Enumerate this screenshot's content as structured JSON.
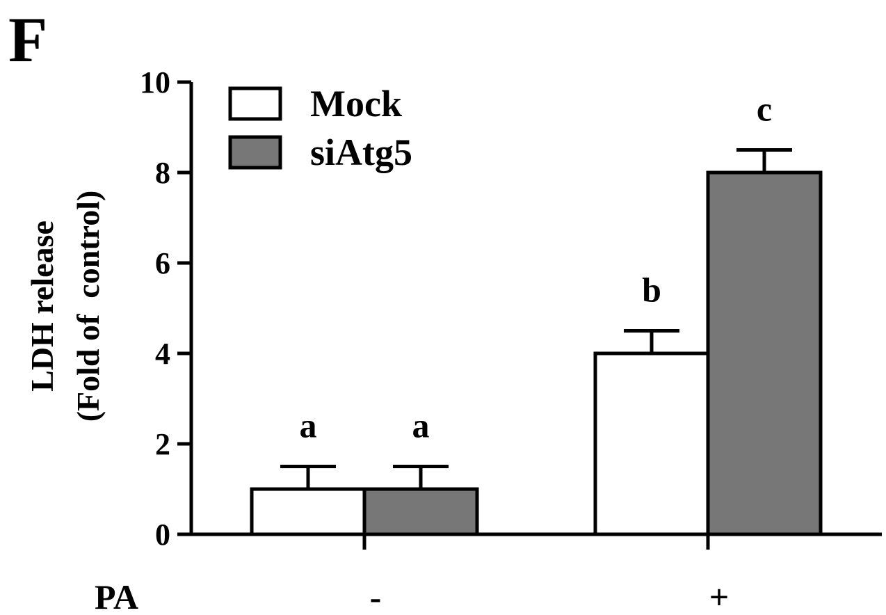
{
  "panel_label": "F",
  "chart_data": {
    "type": "bar",
    "xlabel": "PA",
    "ylabel_line1": "LDH release",
    "ylabel_line2": "(Fold of  control)",
    "categories": [
      "-",
      "+"
    ],
    "ylim": [
      0,
      10
    ],
    "yticks": [
      "0",
      "2",
      "4",
      "6",
      "8",
      "10"
    ],
    "legend_position": "top-left",
    "series": [
      {
        "name": "Mock",
        "color": "#ffffff",
        "values": [
          1.0,
          4.0
        ],
        "errors": [
          0.5,
          0.5
        ],
        "labels": [
          "a",
          "b"
        ]
      },
      {
        "name": "siAtg5",
        "color": "#777777",
        "values": [
          1.0,
          8.0
        ],
        "errors": [
          0.5,
          0.5
        ],
        "labels": [
          "a",
          "c"
        ]
      }
    ]
  }
}
